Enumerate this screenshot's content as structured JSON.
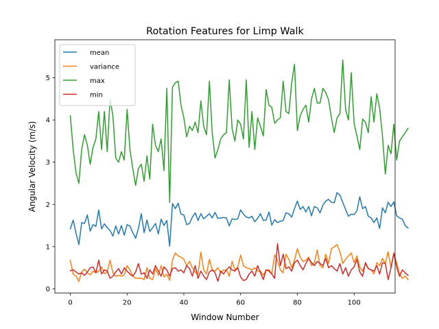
{
  "chart_data": {
    "type": "line",
    "title": "Rotation Features for Limp Walk",
    "xlabel": "Window Number",
    "ylabel": "Angular Velocity (m/s)",
    "xlim": [
      -5.45,
      114.45
    ],
    "ylim": [
      -0.1,
      5.9
    ],
    "xticks": [
      0,
      20,
      40,
      60,
      80,
      100
    ],
    "yticks": [
      0,
      1,
      2,
      3,
      4,
      5
    ],
    "grid": false,
    "legend": "top-left",
    "series": [
      {
        "name": "mean",
        "color": "#1f77b4",
        "values": [
          1.42,
          1.63,
          1.32,
          1.05,
          1.57,
          1.55,
          1.75,
          1.37,
          1.52,
          1.48,
          1.87,
          1.42,
          1.54,
          1.45,
          1.38,
          1.25,
          1.49,
          1.3,
          1.5,
          1.27,
          1.52,
          1.49,
          1.33,
          1.2,
          1.43,
          1.78,
          1.33,
          1.63,
          1.36,
          1.45,
          1.55,
          1.3,
          1.65,
          1.5,
          1.62,
          1.01,
          2.02,
          1.9,
          2.03,
          1.77,
          1.75,
          1.52,
          1.55,
          1.7,
          1.8,
          1.62,
          1.78,
          1.66,
          1.72,
          1.78,
          1.68,
          1.81,
          1.67,
          1.68,
          1.69,
          1.68,
          1.49,
          1.66,
          1.64,
          1.66,
          1.87,
          1.77,
          1.7,
          1.68,
          1.72,
          1.59,
          1.67,
          1.78,
          1.62,
          1.63,
          1.82,
          1.51,
          1.64,
          1.57,
          1.6,
          1.62,
          1.8,
          1.78,
          1.7,
          1.9,
          2.08,
          1.88,
          1.95,
          1.82,
          1.95,
          1.73,
          1.95,
          1.92,
          1.8,
          1.98,
          2.08,
          2.12,
          2.05,
          2.04,
          2.28,
          2.22,
          2.05,
          1.88,
          1.72,
          1.77,
          1.76,
          1.85,
          2.18,
          1.9,
          1.95,
          1.72,
          1.68,
          1.57,
          1.68,
          1.43,
          1.92,
          1.8,
          2.05,
          1.95,
          2.06,
          1.73,
          1.68,
          1.65,
          1.5,
          1.44
        ]
      },
      {
        "name": "variance",
        "color": "#ff7f0e",
        "values": [
          0.67,
          0.35,
          0.3,
          0.18,
          0.4,
          0.47,
          0.38,
          0.33,
          0.42,
          0.38,
          0.42,
          0.52,
          0.36,
          0.4,
          0.68,
          0.38,
          0.3,
          0.32,
          0.3,
          0.33,
          0.55,
          0.45,
          0.3,
          0.25,
          0.25,
          0.25,
          0.22,
          0.5,
          0.25,
          0.22,
          0.48,
          0.32,
          0.55,
          0.28,
          0.35,
          0.2,
          0.68,
          0.85,
          0.78,
          0.75,
          0.7,
          0.55,
          0.65,
          0.5,
          0.4,
          0.35,
          0.87,
          0.45,
          0.35,
          0.7,
          0.45,
          0.42,
          0.5,
          0.38,
          0.45,
          0.44,
          0.3,
          0.65,
          0.45,
          0.52,
          0.8,
          0.55,
          0.5,
          0.48,
          0.45,
          0.5,
          0.42,
          0.42,
          0.32,
          0.45,
          0.45,
          0.35,
          0.8,
          0.68,
          0.45,
          0.38,
          0.82,
          0.7,
          0.5,
          0.68,
          0.95,
          0.75,
          0.65,
          0.68,
          0.75,
          0.55,
          0.62,
          0.92,
          0.55,
          0.5,
          0.82,
          0.6,
          0.95,
          1.0,
          1.05,
          0.88,
          0.6,
          0.7,
          0.78,
          0.85,
          0.62,
          0.78,
          0.52,
          0.42,
          0.6,
          0.48,
          0.45,
          0.35,
          0.62,
          0.55,
          0.72,
          0.6,
          0.88,
          0.5,
          0.82,
          0.62,
          0.35,
          0.25,
          0.3,
          0.22
        ]
      },
      {
        "name": "max",
        "color": "#2ca02c",
        "values": [
          4.1,
          3.3,
          2.75,
          2.5,
          3.3,
          3.65,
          3.4,
          2.95,
          3.35,
          3.55,
          4.2,
          3.3,
          4.2,
          3.25,
          4.5,
          4.1,
          3.1,
          3.0,
          3.25,
          3.05,
          4.25,
          3.3,
          2.85,
          2.45,
          2.85,
          2.95,
          2.55,
          3.15,
          2.6,
          3.9,
          3.4,
          3.25,
          3.55,
          2.8,
          4.75,
          2.05,
          4.78,
          4.88,
          4.92,
          4.35,
          4.05,
          3.6,
          3.85,
          3.75,
          3.95,
          3.7,
          4.45,
          3.85,
          3.65,
          4.92,
          3.7,
          3.1,
          3.3,
          3.55,
          3.65,
          3.7,
          4.95,
          3.8,
          3.5,
          4.0,
          3.9,
          3.55,
          4.95,
          3.35,
          4.2,
          3.3,
          4.05,
          3.85,
          3.62,
          4.72,
          4.35,
          4.3,
          3.92,
          4.0,
          4.05,
          4.92,
          4.2,
          4.15,
          4.88,
          5.32,
          3.75,
          4.1,
          4.25,
          4.35,
          3.95,
          4.5,
          4.75,
          4.4,
          4.4,
          4.75,
          4.65,
          4.48,
          4.05,
          3.7,
          4.05,
          4.15,
          5.42,
          4.25,
          4.0,
          5.12,
          3.92,
          3.62,
          3.3,
          4.02,
          3.95,
          3.7,
          4.55,
          3.95,
          4.62,
          4.28,
          3.62,
          2.72,
          3.4,
          3.2,
          3.9,
          3.05,
          3.5,
          3.6,
          3.7,
          3.8
        ]
      },
      {
        "name": "min",
        "color": "#d62728",
        "values": [
          0.43,
          0.45,
          0.4,
          0.35,
          0.38,
          0.32,
          0.4,
          0.5,
          0.52,
          0.38,
          0.68,
          0.35,
          0.45,
          0.42,
          0.25,
          0.3,
          0.4,
          0.48,
          0.35,
          0.5,
          0.42,
          0.35,
          0.3,
          0.4,
          0.6,
          0.35,
          0.38,
          0.25,
          0.45,
          0.35,
          0.55,
          0.42,
          0.3,
          0.52,
          0.45,
          0.3,
          0.48,
          0.5,
          0.42,
          0.45,
          0.38,
          0.55,
          0.48,
          0.3,
          0.55,
          0.25,
          0.42,
          0.3,
          0.22,
          0.4,
          0.45,
          0.38,
          0.18,
          0.42,
          0.35,
          0.45,
          0.52,
          0.45,
          0.42,
          0.5,
          0.28,
          0.2,
          0.22,
          0.35,
          0.42,
          0.3,
          0.55,
          0.38,
          0.22,
          0.45,
          0.42,
          0.35,
          0.25,
          1.07,
          0.55,
          0.82,
          0.48,
          0.52,
          0.42,
          0.62,
          0.68,
          0.55,
          0.45,
          0.6,
          0.72,
          0.62,
          0.55,
          0.65,
          0.6,
          0.55,
          0.72,
          0.5,
          0.55,
          0.48,
          0.42,
          0.6,
          0.35,
          0.5,
          0.3,
          0.45,
          0.52,
          0.7,
          0.4,
          0.3,
          0.62,
          0.48,
          0.45,
          0.42,
          0.55,
          0.35,
          0.62,
          0.6,
          0.22,
          0.5,
          0.85,
          0.52,
          0.3,
          0.45,
          0.38,
          0.32
        ]
      }
    ]
  }
}
